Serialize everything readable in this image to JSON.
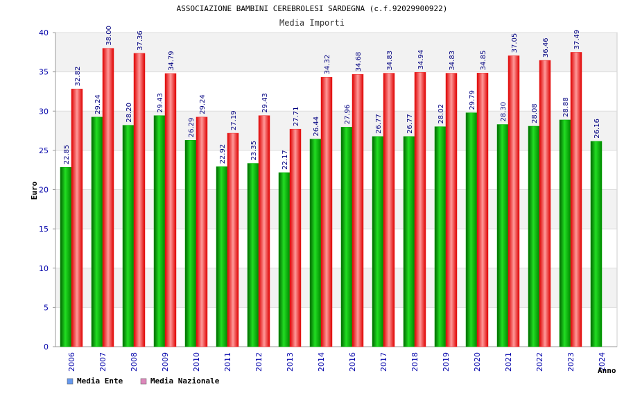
{
  "chart_data": {
    "type": "bar",
    "title": "ASSOCIAZIONE BAMBINI CEREBROLESI SARDEGNA (c.f.92029900922)",
    "subtitle": "Media Importi",
    "xlabel": "Anno",
    "ylabel": "Euro",
    "ylim": [
      0,
      40
    ],
    "yticks": [
      "0",
      "5",
      "10",
      "15",
      "20",
      "25",
      "30",
      "35",
      "40"
    ],
    "grid": true,
    "legend_position": "bottom-left",
    "categories": [
      "2006",
      "2007",
      "2008",
      "2009",
      "2010",
      "2011",
      "2012",
      "2013",
      "2014",
      "2016",
      "2017",
      "2018",
      "2019",
      "2020",
      "2021",
      "2022",
      "2023",
      "2024"
    ],
    "series": [
      {
        "name": "Media Ente",
        "color": "#00aa00",
        "legend_color": "#6699ee",
        "values": [
          22.85,
          29.24,
          28.2,
          29.43,
          26.29,
          22.92,
          23.35,
          22.17,
          26.44,
          27.96,
          26.77,
          26.77,
          28.02,
          29.79,
          28.3,
          28.08,
          28.88,
          26.16
        ],
        "labels": [
          "22.85",
          "29.24",
          "28.20",
          "29.43",
          "26.29",
          "22.92",
          "23.35",
          "22.17",
          "26.44",
          "27.96",
          "26.77",
          "26.77",
          "28.02",
          "29.79",
          "28.30",
          "28.08",
          "28.88",
          "26.16"
        ]
      },
      {
        "name": "Media Nazionale",
        "color": "#ee2222",
        "legend_color": "#dd88bb",
        "values": [
          32.82,
          38.0,
          37.36,
          34.79,
          29.24,
          27.19,
          29.43,
          27.71,
          34.32,
          34.68,
          34.83,
          34.94,
          34.83,
          34.85,
          37.05,
          36.46,
          37.49,
          null
        ],
        "labels": [
          "32.82",
          "38.00",
          "37.36",
          "34.79",
          "29.24",
          "27.19",
          "29.43",
          "27.71",
          "34.32",
          "34.68",
          "34.83",
          "34.94",
          "34.83",
          "34.85",
          "37.05",
          "36.46",
          "37.49",
          ""
        ]
      }
    ]
  }
}
